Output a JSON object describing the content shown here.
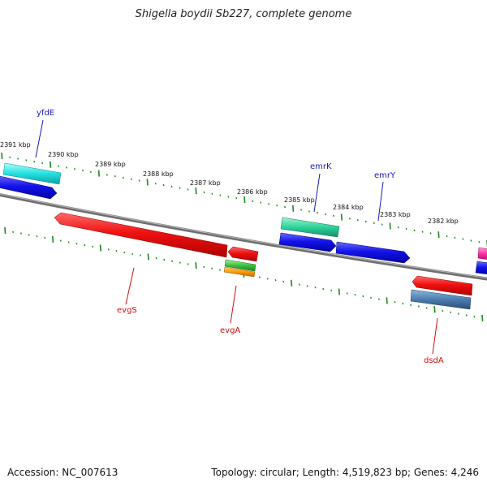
{
  "title": "Shigella boydii Sb227, complete genome",
  "footer": {
    "accession": "Accession: NC_007613",
    "summary": "Topology: circular; Length: 4,519,823 bp; Genes: 4,246"
  },
  "scale_labels": [
    "2391 kbp",
    "2390 kbp",
    "2389 kbp",
    "2388 kbp",
    "2387 kbp",
    "2386 kbp",
    "2385 kbp",
    "2384 kbp",
    "2383 kbp",
    "2382 kbp"
  ],
  "gene_labels": {
    "forward": [
      "yfdE",
      "emrK",
      "emrY"
    ],
    "reverse": [
      "evgS",
      "evgA",
      "dsdA"
    ]
  },
  "colors": {
    "backbone": "#808080",
    "scale_ticks": "#1a8a1a",
    "forward_label": "#1a1ab4",
    "reverse_label": "#d01010",
    "red": "#e41111",
    "blue": "#1515e0",
    "cyan": "#22e0e0",
    "teal": "#2ed19a",
    "steelblue": "#4a7db0",
    "green": "#3cc23c",
    "orange": "#ff9900",
    "magenta": "#ff2fa6"
  }
}
